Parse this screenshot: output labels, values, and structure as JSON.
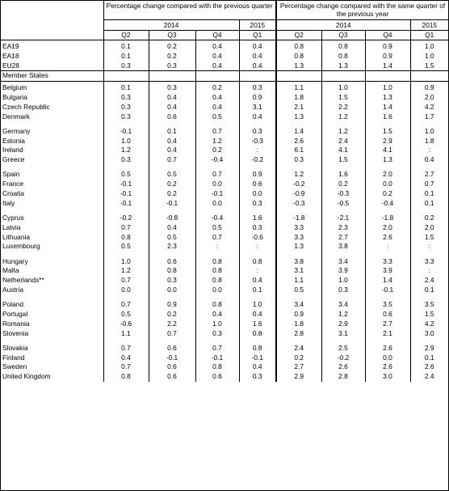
{
  "header": {
    "group_q": "Percentage change compared with the previous quarter",
    "group_y": "Percentage change compared with the same quarter of the previous year",
    "year_2014": "2014",
    "year_2015": "2015",
    "quarters": [
      "Q2",
      "Q3",
      "Q4",
      "Q1",
      "Q2",
      "Q3",
      "Q4",
      "Q1"
    ]
  },
  "section_label": "Member States",
  "aggregates": [
    {
      "name": "EA19",
      "values": [
        "0.1",
        "0.2",
        "0.4",
        "0.4",
        "0.8",
        "0.8",
        "0.9",
        "1.0"
      ]
    },
    {
      "name": "EA18",
      "values": [
        "0.1",
        "0.2",
        "0.4",
        "0.4",
        "0.8",
        "0.8",
        "0.9",
        "1.0"
      ]
    },
    {
      "name": "EU28",
      "values": [
        "0.3",
        "0.3",
        "0.4",
        "0.4",
        "1.3",
        "1.3",
        "1.4",
        "1.5"
      ]
    }
  ],
  "groups": [
    [
      {
        "name": "Belgium",
        "values": [
          "0.1",
          "0.3",
          "0.2",
          "0.3",
          "1.1",
          "1.0",
          "1.0",
          "0.9"
        ]
      },
      {
        "name": "Bulgaria",
        "values": [
          "0.3",
          "0.4",
          "0.4",
          "0.9",
          "1.8",
          "1.5",
          "1.3",
          "2.0"
        ]
      },
      {
        "name": "Czech Republic",
        "values": [
          "0.3",
          "0.4",
          "0.4",
          "3.1",
          "2.1",
          "2.2",
          "1.4",
          "4.2"
        ]
      },
      {
        "name": "Denmark",
        "values": [
          "0.3",
          "0.6",
          "0.5",
          "0.4",
          "1.3",
          "1.2",
          "1.6",
          "1.7"
        ]
      }
    ],
    [
      {
        "name": "Germany",
        "values": [
          "-0.1",
          "0.1",
          "0.7",
          "0.3",
          "1.4",
          "1.2",
          "1.5",
          "1.0"
        ]
      },
      {
        "name": "Estonia",
        "values": [
          "1.0",
          "0.4",
          "1.2",
          "-0.3",
          "2.6",
          "2.4",
          "2.9",
          "1.8"
        ]
      },
      {
        "name": "Ireland",
        "values": [
          "1.2",
          "0.4",
          "0.2",
          ":",
          "6.1",
          "4.1",
          "4.1",
          ":"
        ]
      },
      {
        "name": "Greece",
        "values": [
          "0.3",
          "0.7",
          "-0.4",
          "-0.2",
          "0.3",
          "1.5",
          "1.3",
          "0.4"
        ]
      }
    ],
    [
      {
        "name": "Spain",
        "values": [
          "0.5",
          "0.5",
          "0.7",
          "0.9",
          "1.2",
          "1.6",
          "2.0",
          "2.7"
        ]
      },
      {
        "name": "France",
        "values": [
          "-0.1",
          "0.2",
          "0.0",
          "0.6",
          "-0.2",
          "0.2",
          "0.0",
          "0.7"
        ]
      },
      {
        "name": "Croatia",
        "values": [
          "-0.1",
          "0.2",
          "-0.1",
          "0.0",
          "-0.9",
          "-0.3",
          "0.2",
          "0.1"
        ]
      },
      {
        "name": "Italy",
        "values": [
          "-0.1",
          "-0.1",
          "0.0",
          "0.3",
          "-0.3",
          "-0.5",
          "-0.4",
          "0.1"
        ]
      }
    ],
    [
      {
        "name": "Cyprus",
        "values": [
          "-0.2",
          "-0.8",
          "-0.4",
          "1.6",
          "-1.8",
          "-2.1",
          "-1.8",
          "0.2"
        ]
      },
      {
        "name": "Latvia",
        "values": [
          "0.7",
          "0.4",
          "0.5",
          "0.3",
          "3.3",
          "2.3",
          "2.0",
          "2.0"
        ]
      },
      {
        "name": "Lithuania",
        "values": [
          "0.8",
          "0.5",
          "0.7",
          "-0.6",
          "3.3",
          "2.7",
          "2.6",
          "1.5"
        ]
      },
      {
        "name": "Luxembourg",
        "values": [
          "0.5",
          "2.3",
          ":",
          ":",
          "1.3",
          "3.8",
          ":",
          ":"
        ]
      }
    ],
    [
      {
        "name": "Hungary",
        "values": [
          "1.0",
          "0.6",
          "0.8",
          "0.8",
          "3.8",
          "3.4",
          "3.3",
          "3.3"
        ]
      },
      {
        "name": "Malta",
        "values": [
          "1.2",
          "0.8",
          "0.8",
          ":",
          "3.1",
          "3.9",
          "3.9",
          ":"
        ]
      },
      {
        "name": "Netherlands**",
        "values": [
          "0.7",
          "0.3",
          "0.8",
          "0.4",
          "1.1",
          "1.0",
          "1.4",
          "2.4"
        ]
      },
      {
        "name": "Austria",
        "values": [
          "0.0",
          "0.0",
          "0.0",
          "0.1",
          "0.5",
          "0.3",
          "-0.1",
          "0.1"
        ]
      }
    ],
    [
      {
        "name": "Poland",
        "values": [
          "0.7",
          "0.9",
          "0.8",
          "1.0",
          "3.4",
          "3.4",
          "3.5",
          "3.5"
        ]
      },
      {
        "name": "Portugal",
        "values": [
          "0.5",
          "0.2",
          "0.4",
          "0.4",
          "0.9",
          "1.2",
          "0.6",
          "1.5"
        ]
      },
      {
        "name": "Romania",
        "values": [
          "-0.6",
          "2.2",
          "1.0",
          "1.6",
          "1.8",
          "2.9",
          "2.7",
          "4.2"
        ]
      },
      {
        "name": "Slovenia",
        "values": [
          "1.1",
          "0.7",
          "0.3",
          "0.8",
          "2.8",
          "3.1",
          "2.1",
          "3.0"
        ]
      }
    ],
    [
      {
        "name": "Slovakia",
        "values": [
          "0.7",
          "0.6",
          "0.7",
          "0.8",
          "2.4",
          "2.5",
          "2.6",
          "2.9"
        ]
      },
      {
        "name": "Finland",
        "values": [
          "0.4",
          "-0.1",
          "-0.1",
          "-0.1",
          "0.2",
          "-0.2",
          "0.0",
          "0.1"
        ]
      },
      {
        "name": "Sweden",
        "values": [
          "0.7",
          "0.6",
          "0.8",
          "0.4",
          "2.7",
          "2.6",
          "2.6",
          "2.6"
        ]
      },
      {
        "name": "United Kingdom",
        "values": [
          "0.8",
          "0.6",
          "0.6",
          "0.3",
          "2.9",
          "2.8",
          "3.0",
          "2.4"
        ]
      }
    ]
  ]
}
